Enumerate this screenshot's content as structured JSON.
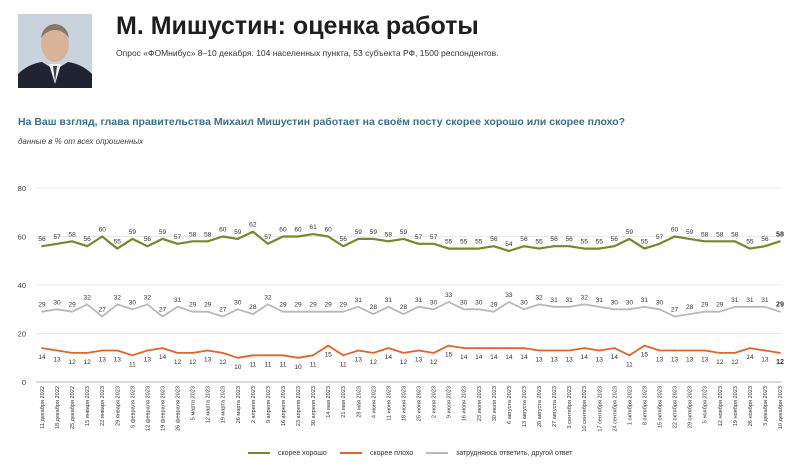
{
  "header": {
    "title": "М. Мишустин: оценка работы",
    "subtitle": "Опрос «ФОМнибус» 8–10 декабря. 104 населенных пункта, 53 субъекта РФ, 1500 респондентов.",
    "question": "На Ваш взгляд, глава правительства Михаил Мишустин работает на своём посту скорее хорошо или скорее плохо?",
    "note": "данные в % от всех опрошенных"
  },
  "chart_data": {
    "type": "line",
    "ylim": [
      0,
      80
    ],
    "yticks": [
      0,
      20,
      40,
      60,
      80
    ],
    "grid": true,
    "legend_position": "bottom",
    "categories": [
      "11 декабря 2022",
      "18 декабря 2022",
      "25 декабря 2022",
      "15 января 2023",
      "22 января 2023",
      "29 января 2023",
      "5 февраля 2023",
      "12 февраля 2023",
      "19 февраля 2023",
      "26 февраля 2023",
      "5 марта 2023",
      "12 марта 2023",
      "19 марта 2023",
      "26 марта 2023",
      "2 апреля 2023",
      "9 апреля 2023",
      "16 апреля 2023",
      "23 апреля 2023",
      "30 апреля 2023",
      "14 мая 2023",
      "21 мая 2023",
      "28 мая 2023",
      "4 июня 2023",
      "11 июня 2023",
      "18 июня 2023",
      "25 июня 2023",
      "2 июля 2023",
      "9 июля 2023",
      "16 июля 2023",
      "23 июля 2023",
      "30 июля 2023",
      "6 августа 2023",
      "13 августа 2023",
      "20 августа 2023",
      "27 августа 2023",
      "3 сентября 2023",
      "10 сентября 2023",
      "17 сентября 2023",
      "24 сентября 2023",
      "1 октября 2023",
      "8 октября 2023",
      "15 октября 2023",
      "22 октября 2023",
      "29 октября 2023",
      "5 ноября 2023",
      "12 ноября 2023",
      "19 ноября 2023",
      "26 ноября 2023",
      "3 декабря 2023",
      "10 декабря 2023"
    ],
    "series": [
      {
        "name": "скорее хорошо",
        "color": "#77872f",
        "values": [
          56,
          57,
          58,
          56,
          60,
          55,
          59,
          56,
          59,
          57,
          58,
          58,
          60,
          59,
          62,
          57,
          60,
          60,
          61,
          60,
          56,
          59,
          59,
          58,
          59,
          57,
          57,
          55,
          55,
          55,
          56,
          54,
          56,
          55,
          56,
          56,
          55,
          55,
          56,
          59,
          55,
          57,
          60,
          59,
          58,
          58,
          58,
          55,
          56,
          58
        ]
      },
      {
        "name": "скорее плохо",
        "color": "#e2632a",
        "values": [
          14,
          13,
          12,
          12,
          13,
          13,
          11,
          13,
          14,
          12,
          12,
          13,
          12,
          10,
          11,
          11,
          11,
          10,
          11,
          15,
          11,
          13,
          12,
          14,
          12,
          13,
          12,
          15,
          14,
          14,
          14,
          14,
          14,
          13,
          13,
          13,
          14,
          13,
          14,
          11,
          15,
          13,
          13,
          13,
          13,
          12,
          12,
          14,
          13,
          12
        ]
      },
      {
        "name": "затрудняюсь ответить, другой ответ",
        "color": "#b9b9b9",
        "values": [
          29,
          30,
          29,
          32,
          27,
          32,
          30,
          32,
          27,
          31,
          29,
          29,
          27,
          30,
          28,
          32,
          29,
          29,
          29,
          29,
          29,
          31,
          28,
          31,
          28,
          31,
          30,
          33,
          30,
          30,
          29,
          33,
          30,
          32,
          31,
          31,
          32,
          31,
          30,
          30,
          31,
          30,
          27,
          28,
          29,
          29,
          31,
          31,
          31,
          29
        ]
      }
    ]
  }
}
